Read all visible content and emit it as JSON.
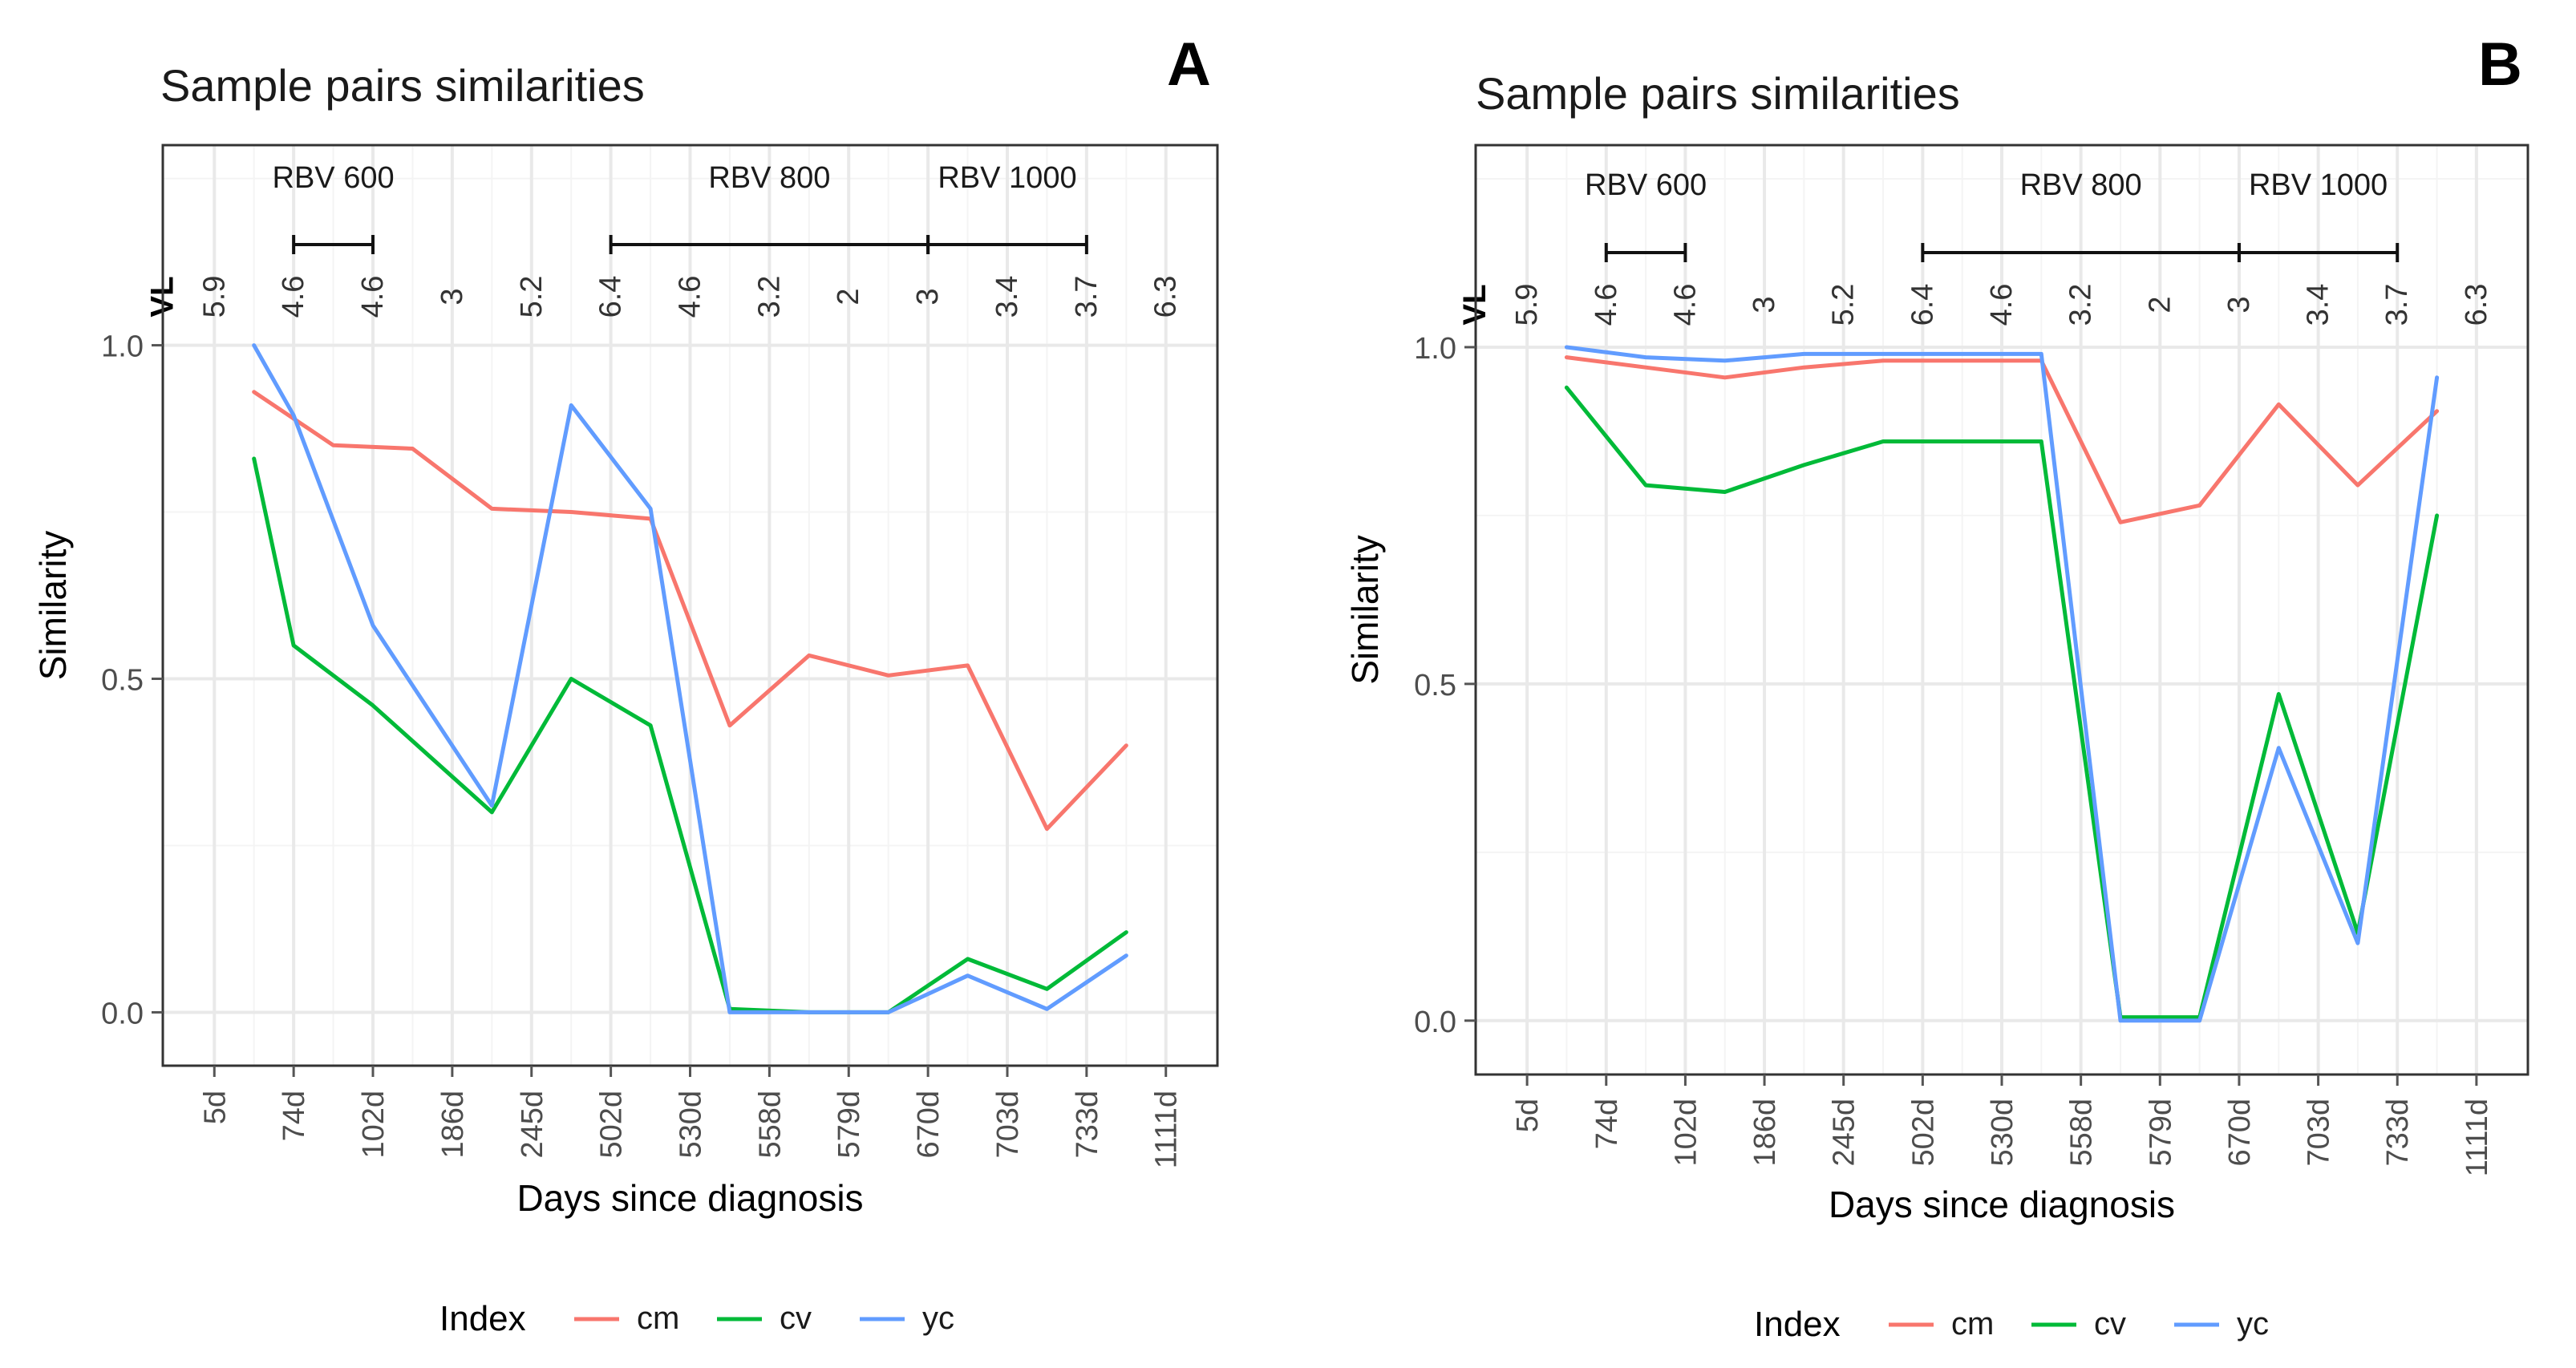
{
  "chart_data": [
    {
      "type": "line",
      "panel_letter": "A",
      "title": "Sample pairs similarities",
      "xlabel": "Days since diagnosis",
      "ylabel": "Similarity",
      "ylim": [
        -0.08,
        1.3
      ],
      "yticks": [
        "0.0",
        "0.5",
        "1.0"
      ],
      "grid": true,
      "categories": [
        "5d",
        "74d",
        "102d",
        "186d",
        "245d",
        "502d",
        "530d",
        "558d",
        "579d",
        "670d",
        "703d",
        "733d",
        "1111d"
      ],
      "vl_label": "VL",
      "vl_values": [
        "5.9",
        "4.6",
        "4.6",
        "3",
        "5.2",
        "6.4",
        "4.6",
        "3.2",
        "2",
        "3",
        "3.4",
        "3.7",
        "6.3"
      ],
      "treatments": [
        {
          "label": "RBV 600",
          "from": "74d",
          "to": "102d"
        },
        {
          "label": "RBV 800",
          "from": "502d",
          "to": "670d"
        },
        {
          "label": "RBV 1000",
          "from": "670d",
          "to": "733d"
        }
      ],
      "series": [
        {
          "name": "cm",
          "color": "#f8766d",
          "x": [
            1.5,
            2.5,
            3.5,
            4.5,
            5.5,
            6.5,
            7.5,
            8.5,
            9.5,
            10.5,
            11.5,
            12.5
          ],
          "values": [
            0.93,
            0.85,
            0.845,
            0.755,
            0.75,
            0.74,
            0.43,
            0.535,
            0.505,
            0.52,
            0.275,
            0.4
          ]
        },
        {
          "name": "cv",
          "color": "#00ba38",
          "x": [
            1.5,
            2,
            3,
            4.5,
            5.5,
            6.5,
            7.5,
            8.5,
            9.5,
            10.5,
            11.5,
            12.5
          ],
          "values": [
            0.83,
            0.55,
            0.46,
            0.3,
            0.5,
            0.43,
            0.005,
            0.0,
            0.0,
            0.08,
            0.035,
            0.12
          ]
        },
        {
          "name": "yc",
          "color": "#619cff",
          "x": [
            1.5,
            2,
            3,
            4.5,
            5.5,
            6.5,
            7.5,
            8.5,
            9.5,
            10.5,
            11.5,
            12.5
          ],
          "values": [
            1.0,
            0.895,
            0.58,
            0.31,
            0.91,
            0.755,
            0.0,
            0.0,
            0.0,
            0.055,
            0.005,
            0.085
          ]
        }
      ],
      "legend": {
        "title": "Index",
        "placement": "bottom"
      }
    },
    {
      "type": "line",
      "panel_letter": "B",
      "title": "Sample pairs similarities",
      "xlabel": "Days since diagnosis",
      "ylabel": "Similarity",
      "ylim": [
        -0.08,
        1.3
      ],
      "yticks": [
        "0.0",
        "0.5",
        "1.0"
      ],
      "grid": true,
      "categories": [
        "5d",
        "74d",
        "102d",
        "186d",
        "245d",
        "502d",
        "530d",
        "558d",
        "579d",
        "670d",
        "703d",
        "733d",
        "1111d"
      ],
      "vl_label": "VL",
      "vl_values": [
        "5.9",
        "4.6",
        "4.6",
        "3",
        "5.2",
        "6.4",
        "4.6",
        "3.2",
        "2",
        "3",
        "3.4",
        "3.7",
        "6.3"
      ],
      "treatments": [
        {
          "label": "RBV 600",
          "from": "74d",
          "to": "102d"
        },
        {
          "label": "RBV 800",
          "from": "502d",
          "to": "670d"
        },
        {
          "label": "RBV 1000",
          "from": "670d",
          "to": "733d"
        }
      ],
      "series": [
        {
          "name": "cm",
          "color": "#f8766d",
          "x": [
            1.5,
            2.5,
            3.5,
            4.5,
            5.5,
            6.5,
            7.5,
            8.5,
            9.5,
            10.5,
            11.5,
            12.5
          ],
          "values": [
            0.985,
            0.97,
            0.955,
            0.97,
            0.98,
            0.98,
            0.98,
            0.74,
            0.765,
            0.915,
            0.795,
            0.905
          ]
        },
        {
          "name": "cv",
          "color": "#00ba38",
          "x": [
            1.5,
            2.5,
            3.5,
            4.5,
            5.5,
            6.5,
            7.5,
            8.5,
            9.5,
            10.5,
            11.5,
            12.5
          ],
          "values": [
            0.94,
            0.795,
            0.785,
            0.825,
            0.86,
            0.86,
            0.86,
            0.005,
            0.005,
            0.485,
            0.13,
            0.75
          ]
        },
        {
          "name": "yc",
          "color": "#619cff",
          "x": [
            1.5,
            2.5,
            3.5,
            4.5,
            5.5,
            6.5,
            7.5,
            8.5,
            9.5,
            10.5,
            11.5,
            12.5
          ],
          "values": [
            1.0,
            0.985,
            0.98,
            0.99,
            0.99,
            0.99,
            0.99,
            0.0,
            0.0,
            0.405,
            0.115,
            0.955
          ]
        }
      ],
      "legend": {
        "title": "Index",
        "placement": "bottom"
      }
    }
  ]
}
